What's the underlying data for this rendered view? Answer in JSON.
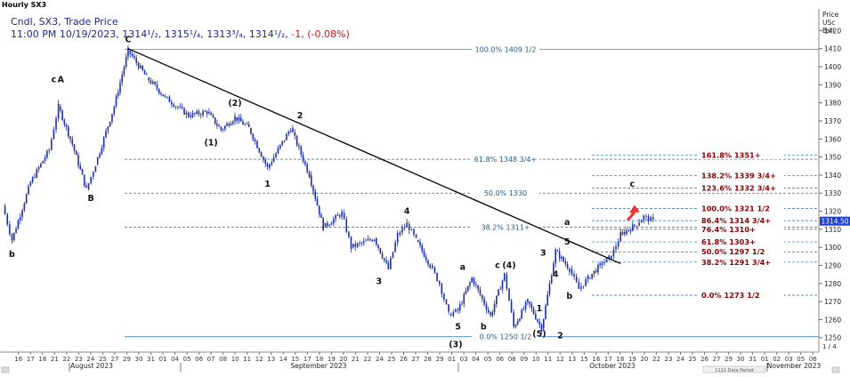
{
  "window_title": "Hourly SX3",
  "header": {
    "line1": "Cndl, SX3, Trade Price",
    "line2_prefix": "11:00 PM 10/19/2023, ",
    "line2_ohlc": "1314¹/₂, 1315¹/₄, 1313³/₄, 1314¹/₂",
    "line2_change": "-1, (-0.08%)"
  },
  "colors": {
    "candle": "#1a2fa8",
    "fib_line": "#1f6fb0",
    "fib_label": "#1f5b8c",
    "right_fib_label": "#8b0000",
    "trendline": "#000000",
    "arrow": "#ee3333",
    "current_price_tag": "#1f3fd0"
  },
  "axis": {
    "price_unit_label": [
      "Price",
      "USc",
      "Bsh"
    ],
    "scale_label": "1 / 4",
    "current_price_tag_text": "1314.50",
    "footer_note": "1112 Data Period"
  },
  "chart_data": {
    "type": "candlestick",
    "timeframe": "hourly",
    "ylim": [
      1242,
      1432
    ],
    "y_ticks": [
      1250,
      1260,
      1270,
      1280,
      1290,
      1300,
      1310,
      1320,
      1330,
      1340,
      1350,
      1360,
      1370,
      1380,
      1390,
      1400,
      1410,
      1420
    ],
    "x_day_labels": [
      "16",
      "17",
      "18",
      "21",
      "22",
      "23",
      "24",
      "25",
      "27",
      "29",
      "30",
      "31",
      "01",
      "04",
      "05",
      "06",
      "07",
      "08",
      "10",
      "11",
      "12",
      "13",
      "14",
      "15",
      "17",
      "18",
      "19",
      "20",
      "21",
      "22",
      "24",
      "25",
      "26",
      "27",
      "28",
      "29",
      "01",
      "03",
      "04",
      "05",
      "06",
      "08",
      "09",
      "10",
      "11",
      "12",
      "13",
      "15",
      "16",
      "17",
      "18",
      "19",
      "20",
      "22",
      "23",
      "24",
      "25",
      "26",
      "27",
      "29",
      "30",
      "31",
      "01",
      "02",
      "03",
      "05",
      "06"
    ],
    "x_month_labels": [
      "August 2023",
      "September 2023",
      "October 2023",
      "November 2023"
    ],
    "price_path": [
      [
        0,
        1323
      ],
      [
        2,
        1304
      ],
      [
        6,
        1336
      ],
      [
        10,
        1354
      ],
      [
        12,
        1378
      ],
      [
        15,
        1357
      ],
      [
        18,
        1332
      ],
      [
        20,
        1346
      ],
      [
        24,
        1378
      ],
      [
        27,
        1409
      ],
      [
        31,
        1394
      ],
      [
        35,
        1383
      ],
      [
        40,
        1373
      ],
      [
        44,
        1375
      ],
      [
        47,
        1365
      ],
      [
        50,
        1372
      ],
      [
        53,
        1366
      ],
      [
        57,
        1344
      ],
      [
        62,
        1366
      ],
      [
        66,
        1340
      ],
      [
        69,
        1311
      ],
      [
        73,
        1319
      ],
      [
        75,
        1300
      ],
      [
        80,
        1305
      ],
      [
        83,
        1288
      ],
      [
        85,
        1307
      ],
      [
        87,
        1313
      ],
      [
        89,
        1304
      ],
      [
        92,
        1290
      ],
      [
        94,
        1280
      ],
      [
        96,
        1263
      ],
      [
        98,
        1265
      ],
      [
        101,
        1283
      ],
      [
        105,
        1262
      ],
      [
        108,
        1285
      ],
      [
        110,
        1256
      ],
      [
        113,
        1270
      ],
      [
        116,
        1255
      ],
      [
        119,
        1298
      ],
      [
        122,
        1288
      ],
      [
        124,
        1277
      ],
      [
        126,
        1283
      ],
      [
        129,
        1291
      ],
      [
        131,
        1295
      ],
      [
        133,
        1307
      ],
      [
        136,
        1312
      ],
      [
        138,
        1317
      ],
      [
        140,
        1314.5
      ]
    ],
    "last_price": 1314.5,
    "trendline": {
      "from": [
        27,
        1410
      ],
      "to": [
        133,
        1291
      ]
    },
    "fib_levels_left": [
      {
        "pct": "100.0%",
        "price_text": "1409 1/2",
        "value": 1409.5
      },
      {
        "pct": "61.8%",
        "price_text": "1348 3/4+",
        "value": 1348.75
      },
      {
        "pct": "50.0%",
        "price_text": "1330",
        "value": 1330
      },
      {
        "pct": "38.2%",
        "price_text": "1311+",
        "value": 1311.1
      },
      {
        "pct": "0.0%",
        "price_text": "1250 1/2",
        "value": 1250.5
      }
    ],
    "fib_levels_right": [
      {
        "pct": "161.8%",
        "price_text": "1351+",
        "value": 1351
      },
      {
        "pct": "138.2%",
        "price_text": "1339 3/4+",
        "value": 1339.8
      },
      {
        "pct": "123.6%",
        "price_text": "1332 3/4+",
        "value": 1332.8
      },
      {
        "pct": "100.0%",
        "price_text": "1321 1/2",
        "value": 1321.5
      },
      {
        "pct": "86.4%",
        "price_text": "1314 3/4+",
        "value": 1314.8
      },
      {
        "pct": "76.4%",
        "price_text": "1310+",
        "value": 1310
      },
      {
        "pct": "61.8%",
        "price_text": "1303+",
        "value": 1303
      },
      {
        "pct": "50.0%",
        "price_text": "1297 1/2",
        "value": 1297.5
      },
      {
        "pct": "38.2%",
        "price_text": "1291 3/4+",
        "value": 1291.8
      },
      {
        "pct": "0.0%",
        "price_text": "1273 1/2",
        "value": 1273.5
      }
    ],
    "wave_labels": [
      {
        "text": "b",
        "x": 2,
        "y": 1300,
        "pos": "below"
      },
      {
        "text": "c",
        "x": 11,
        "y": 1389,
        "pos": "above"
      },
      {
        "text": "A",
        "x": 12.5,
        "y": 1389,
        "pos": "above"
      },
      {
        "text": "B",
        "x": 19,
        "y": 1331,
        "pos": "below"
      },
      {
        "text": "C",
        "x": 27,
        "y": 1411,
        "pos": "above"
      },
      {
        "text": "(1)",
        "x": 46,
        "y": 1358,
        "pos": "left"
      },
      {
        "text": "(2)",
        "x": 50,
        "y": 1376,
        "pos": "above"
      },
      {
        "text": "1",
        "x": 57,
        "y": 1339,
        "pos": "below"
      },
      {
        "text": "2",
        "x": 64,
        "y": 1369,
        "pos": "above"
      },
      {
        "text": "3",
        "x": 81,
        "y": 1285,
        "pos": "below"
      },
      {
        "text": "4",
        "x": 87,
        "y": 1316,
        "pos": "above"
      },
      {
        "text": "a",
        "x": 99,
        "y": 1285,
        "pos": "above"
      },
      {
        "text": "5",
        "x": 98,
        "y": 1260,
        "pos": "below"
      },
      {
        "text": "(3)",
        "x": 97.5,
        "y": 1250,
        "pos": "below"
      },
      {
        "text": "b",
        "x": 103.5,
        "y": 1260,
        "pos": "below"
      },
      {
        "text": "c",
        "x": 106.5,
        "y": 1286,
        "pos": "above"
      },
      {
        "text": "(4)",
        "x": 109,
        "y": 1286,
        "pos": "above"
      },
      {
        "text": "1",
        "x": 115.5,
        "y": 1270,
        "pos": "below"
      },
      {
        "text": "(5)",
        "x": 115.5,
        "y": 1256,
        "pos": "below"
      },
      {
        "text": "2",
        "x": 120,
        "y": 1255,
        "pos": "below"
      },
      {
        "text": "3",
        "x": 117.5,
        "y": 1297,
        "pos": "left"
      },
      {
        "text": "4",
        "x": 119,
        "y": 1289,
        "pos": "below"
      },
      {
        "text": "5",
        "x": 121.5,
        "y": 1299,
        "pos": "above"
      },
      {
        "text": "a",
        "x": 121.5,
        "y": 1310,
        "pos": "above"
      },
      {
        "text": "b",
        "x": 122,
        "y": 1277,
        "pos": "below"
      },
      {
        "text": "c",
        "x": 135.5,
        "y": 1331,
        "pos": "above"
      }
    ],
    "projection_arrow": {
      "from": [
        134.5,
        1315
      ],
      "to": [
        136,
        1322
      ]
    }
  }
}
